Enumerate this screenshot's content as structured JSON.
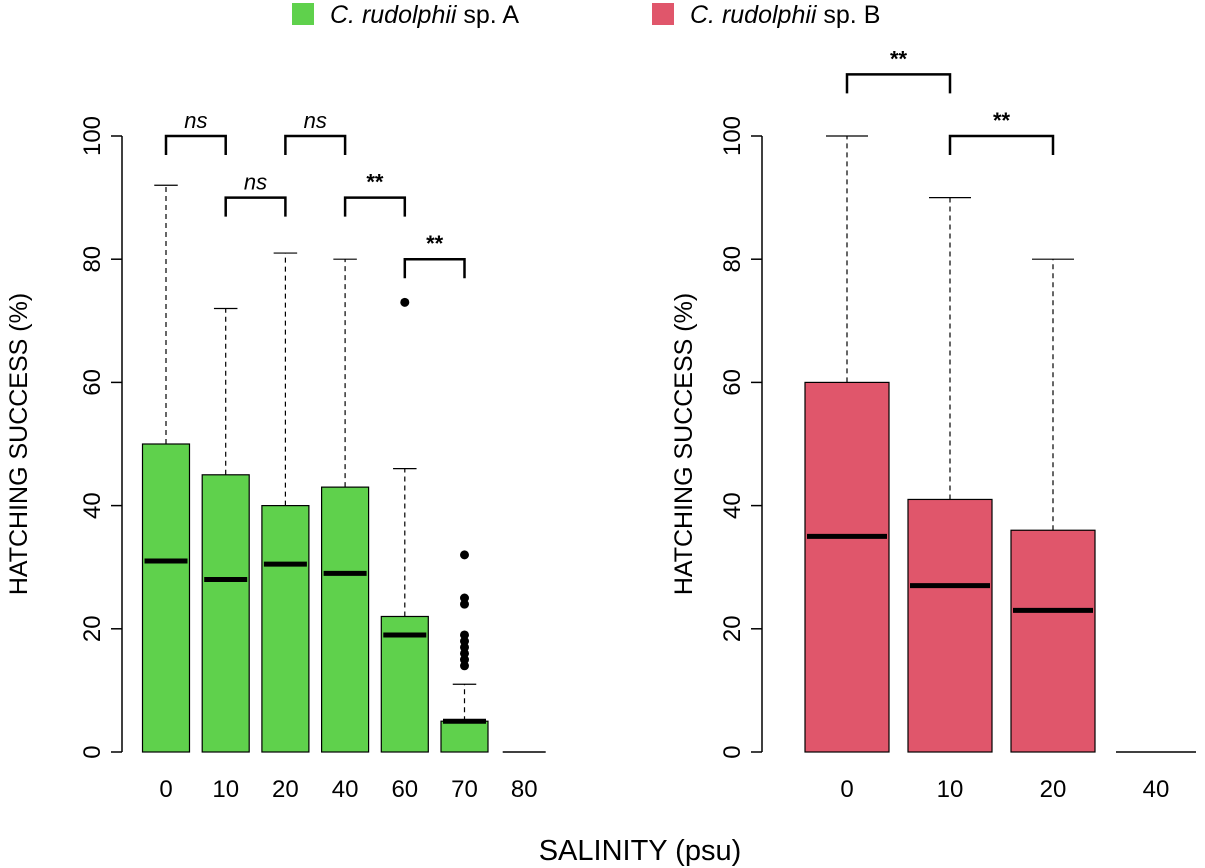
{
  "legend": {
    "items": [
      {
        "prefix": "C. rudolphii",
        "suffix": " sp. A",
        "color": "#5fd14c"
      },
      {
        "prefix": "C. rudolphii",
        "suffix": " sp. B",
        "color": "#e0566b"
      }
    ]
  },
  "xlabel": "SALINITY (psu)",
  "chart_data": [
    {
      "type": "boxplot",
      "ylabel": "HATCHING SUCCESS (%)",
      "ylim": [
        0,
        100
      ],
      "yticks": [
        0,
        20,
        40,
        60,
        80,
        100
      ],
      "fill": "#5fd14c",
      "categories": [
        "0",
        "10",
        "20",
        "40",
        "60",
        "70",
        "80"
      ],
      "boxes": [
        {
          "q1": 0,
          "median": 31,
          "q3": 50,
          "whisker_low": 0,
          "whisker_high": 92,
          "outliers": []
        },
        {
          "q1": 0,
          "median": 28,
          "q3": 45,
          "whisker_low": 0,
          "whisker_high": 72,
          "outliers": []
        },
        {
          "q1": 0,
          "median": 30.5,
          "q3": 40,
          "whisker_low": 0,
          "whisker_high": 81,
          "outliers": []
        },
        {
          "q1": 0,
          "median": 29,
          "q3": 43,
          "whisker_low": 0,
          "whisker_high": 80,
          "outliers": []
        },
        {
          "q1": 0,
          "median": 19,
          "q3": 22,
          "whisker_low": 0,
          "whisker_high": 46,
          "outliers": [
            73
          ]
        },
        {
          "q1": 0,
          "median": 5,
          "q3": 5,
          "whisker_low": 0,
          "whisker_high": 11,
          "outliers": [
            14,
            15,
            16,
            17,
            18,
            19,
            24,
            25,
            32
          ]
        },
        {
          "q1": 0,
          "median": 0,
          "q3": 0,
          "whisker_low": 0,
          "whisker_high": 0,
          "outliers": []
        }
      ],
      "annotations": [
        {
          "from": 0,
          "to": 1,
          "y": 100,
          "label": "ns",
          "italic": true
        },
        {
          "from": 2,
          "to": 3,
          "y": 100,
          "label": "ns",
          "italic": true
        },
        {
          "from": 1,
          "to": 2,
          "y": 90,
          "label": "ns",
          "italic": true
        },
        {
          "from": 3,
          "to": 4,
          "y": 90,
          "label": "**",
          "italic": false
        },
        {
          "from": 4,
          "to": 5,
          "y": 80,
          "label": "**",
          "italic": false
        }
      ]
    },
    {
      "type": "boxplot",
      "ylabel": "HATCHING SUCCESS (%)",
      "ylim": [
        0,
        100
      ],
      "yticks": [
        0,
        20,
        40,
        60,
        80,
        100
      ],
      "fill": "#e0566b",
      "categories": [
        "0",
        "10",
        "20",
        "40"
      ],
      "boxes": [
        {
          "q1": 0,
          "median": 35,
          "q3": 60,
          "whisker_low": 0,
          "whisker_high": 100,
          "outliers": []
        },
        {
          "q1": 0,
          "median": 27,
          "q3": 41,
          "whisker_low": 0,
          "whisker_high": 90,
          "outliers": []
        },
        {
          "q1": 0,
          "median": 23,
          "q3": 36,
          "whisker_low": 0,
          "whisker_high": 80,
          "outliers": []
        },
        {
          "q1": 0,
          "median": 0,
          "q3": 0,
          "whisker_low": 0,
          "whisker_high": 0,
          "outliers": []
        }
      ],
      "annotations": [
        {
          "from": 0,
          "to": 1,
          "y": 110,
          "label": "**",
          "italic": false
        },
        {
          "from": 1,
          "to": 2,
          "y": 100,
          "label": "**",
          "italic": false
        }
      ]
    }
  ]
}
